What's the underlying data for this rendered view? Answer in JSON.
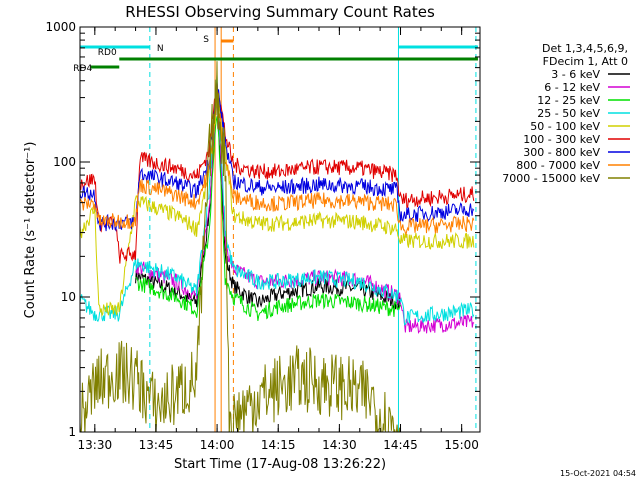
{
  "chart_data": {
    "type": "line",
    "title": "RHESSI Observing Summary Count Rates",
    "xlabel": "Start Time (17-Aug-08 13:26:22)",
    "ylabel": "Count Rate (s⁻¹ detector⁻¹)",
    "y_scale": "log",
    "ylim": [
      1,
      1000
    ],
    "xlim": [
      "13:26:22",
      "15:04:30"
    ],
    "x_ticks": [
      "13:30",
      "13:45",
      "14:00",
      "14:15",
      "14:30",
      "14:45",
      "15:00"
    ],
    "y_ticks": [
      "1",
      "10",
      "100",
      "1000"
    ],
    "grid": false,
    "legend_placement": "top-right",
    "legend_header": [
      "Det 1,3,4,5,6,9,",
      "FDecim 1, Att 0"
    ],
    "series": [
      {
        "name": "3 - 6 keV",
        "color": "#000000",
        "points": [
          [
            "13:40",
            14.5
          ],
          [
            "13:50",
            11
          ],
          [
            "13:55",
            9
          ],
          [
            "13:58",
            40
          ],
          [
            "14:00",
            330
          ],
          [
            "14:02",
            20
          ],
          [
            "14:04",
            12
          ],
          [
            "14:10",
            9
          ],
          [
            "14:15",
            10.5
          ],
          [
            "14:25",
            12
          ],
          [
            "14:35",
            11.5
          ],
          [
            "14:45",
            9
          ]
        ]
      },
      {
        "name": "6 - 12 keV",
        "color": "#d400d4",
        "points": [
          [
            "13:40",
            17
          ],
          [
            "13:50",
            13
          ],
          [
            "13:55",
            10
          ],
          [
            "13:58",
            45
          ],
          [
            "14:00",
            350
          ],
          [
            "14:02",
            25
          ],
          [
            "14:04",
            16
          ],
          [
            "14:10",
            13
          ],
          [
            "14:15",
            13
          ],
          [
            "14:25",
            14
          ],
          [
            "14:35",
            13.5
          ],
          [
            "14:45",
            10
          ],
          [
            "14:46",
            6
          ],
          [
            "15:03",
            6.5
          ]
        ]
      },
      {
        "name": "12 - 25 keV",
        "color": "#00e000",
        "points": [
          [
            "13:40",
            13
          ],
          [
            "13:50",
            10
          ],
          [
            "13:55",
            8
          ],
          [
            "13:58",
            30
          ],
          [
            "14:00",
            250
          ],
          [
            "14:02",
            14
          ],
          [
            "14:04",
            10
          ],
          [
            "14:10",
            7.5
          ],
          [
            "14:15",
            8.5
          ],
          [
            "14:25",
            9.5
          ],
          [
            "14:35",
            9
          ],
          [
            "14:45",
            8
          ]
        ]
      },
      {
        "name": "25 - 50 keV",
        "color": "#00e0e0",
        "points": [
          [
            "13:26:22",
            9.5
          ],
          [
            "13:30",
            7.5
          ],
          [
            "13:36",
            7.5
          ],
          [
            "13:40",
            18
          ],
          [
            "13:50",
            14
          ],
          [
            "13:55",
            11
          ],
          [
            "13:58",
            60
          ],
          [
            "14:00",
            420
          ],
          [
            "14:02",
            30
          ],
          [
            "14:04",
            16
          ],
          [
            "14:10",
            13
          ],
          [
            "14:15",
            13
          ],
          [
            "14:25",
            14
          ],
          [
            "14:35",
            13
          ],
          [
            "14:45",
            10
          ],
          [
            "14:46",
            7
          ],
          [
            "15:03",
            8
          ]
        ]
      },
      {
        "name": "50 - 100 keV",
        "color": "#d0d000",
        "points": [
          [
            "13:26:22",
            30
          ],
          [
            "13:30",
            45
          ],
          [
            "13:31",
            8
          ],
          [
            "13:36",
            8
          ],
          [
            "13:40",
            52
          ],
          [
            "13:50",
            40
          ],
          [
            "13:55",
            32
          ],
          [
            "13:58",
            80
          ],
          [
            "14:00",
            290
          ],
          [
            "14:02",
            120
          ],
          [
            "14:04",
            40
          ],
          [
            "14:10",
            35
          ],
          [
            "14:15",
            35
          ],
          [
            "14:25",
            37
          ],
          [
            "14:35",
            36
          ],
          [
            "14:44",
            32
          ],
          [
            "14:45",
            26
          ],
          [
            "15:03",
            26
          ]
        ]
      },
      {
        "name": "100 - 300 keV",
        "color": "#e00000",
        "points": [
          [
            "13:26:22",
            70
          ],
          [
            "13:30",
            75
          ],
          [
            "13:31",
            35
          ],
          [
            "13:35",
            35
          ],
          [
            "13:36",
            20
          ],
          [
            "13:40",
            21
          ],
          [
            "13:41",
            105
          ],
          [
            "13:50",
            90
          ],
          [
            "13:55",
            78
          ],
          [
            "13:58",
            120
          ],
          [
            "14:00",
            400
          ],
          [
            "14:02",
            160
          ],
          [
            "14:04",
            95
          ],
          [
            "14:10",
            85
          ],
          [
            "14:15",
            85
          ],
          [
            "14:25",
            92
          ],
          [
            "14:35",
            90
          ],
          [
            "14:44",
            80
          ],
          [
            "14:45",
            52
          ],
          [
            "15:03",
            58
          ]
        ]
      },
      {
        "name": "300 - 800 keV",
        "color": "#0000e0",
        "points": [
          [
            "13:26:22",
            60
          ],
          [
            "13:30",
            58
          ],
          [
            "13:31",
            35
          ],
          [
            "13:40",
            36
          ],
          [
            "13:41",
            82
          ],
          [
            "13:50",
            70
          ],
          [
            "13:55",
            60
          ],
          [
            "13:58",
            100
          ],
          [
            "14:00",
            380
          ],
          [
            "14:02",
            140
          ],
          [
            "14:04",
            72
          ],
          [
            "14:10",
            65
          ],
          [
            "14:15",
            64
          ],
          [
            "14:25",
            68
          ],
          [
            "14:35",
            66
          ],
          [
            "14:44",
            62
          ],
          [
            "14:45",
            40
          ],
          [
            "15:03",
            45
          ]
        ]
      },
      {
        "name": "800 - 7000 keV",
        "color": "#ff8000",
        "points": [
          [
            "13:26:22",
            48
          ],
          [
            "13:30",
            50
          ],
          [
            "13:31",
            36
          ],
          [
            "13:40",
            37
          ],
          [
            "13:41",
            68
          ],
          [
            "13:50",
            57
          ],
          [
            "13:55",
            50
          ],
          [
            "13:58",
            85
          ],
          [
            "14:00",
            300
          ],
          [
            "14:02",
            110
          ],
          [
            "14:04",
            55
          ],
          [
            "14:10",
            50
          ],
          [
            "14:15",
            49
          ],
          [
            "14:25",
            52
          ],
          [
            "14:35",
            51
          ],
          [
            "14:44",
            48
          ],
          [
            "14:45",
            33
          ],
          [
            "15:03",
            35
          ]
        ]
      },
      {
        "name": "7000 - 15000 keV",
        "color": "#808000",
        "points": [
          [
            "13:26:22",
            1.2
          ],
          [
            "13:30",
            2.2
          ],
          [
            "13:35",
            2.8
          ],
          [
            "13:40",
            2.5
          ],
          [
            "13:45",
            1.5
          ],
          [
            "13:55",
            2.5
          ],
          [
            "13:58",
            100
          ],
          [
            "14:00",
            330
          ],
          [
            "14:02",
            100
          ],
          [
            "14:03",
            1.2
          ],
          [
            "14:10",
            1.8
          ],
          [
            "14:20",
            2.5
          ],
          [
            "14:30",
            2.2
          ],
          [
            "14:38",
            1.8
          ],
          [
            "14:40",
            1.3
          ],
          [
            "14:45",
            1.1
          ]
        ]
      }
    ],
    "annotations": {
      "flags": [
        {
          "label": "N",
          "color": "#00e0e0",
          "segments": [
            [
              "13:26:22",
              "13:43:30"
            ],
            [
              "14:44:30",
              "15:04:00"
            ]
          ]
        },
        {
          "label": "RD0",
          "color": "#008000",
          "segments": [
            [
              "13:36:00",
              "15:04:00"
            ]
          ]
        },
        {
          "label": "RD4",
          "color": "#008000",
          "segments": [
            [
              "13:29:00",
              "13:36:00"
            ]
          ]
        },
        {
          "label": "S",
          "color": "#ff8000",
          "segments": [
            [
              "14:01:00",
              "14:04:00"
            ]
          ]
        }
      ],
      "vertical_lines": [
        {
          "time": "13:43:30",
          "color": "#00e0e0",
          "style": "dashed"
        },
        {
          "time": "14:44:30",
          "color": "#00e0e0",
          "style": "solid"
        },
        {
          "time": "15:03:30",
          "color": "#00e0e0",
          "style": "dashed"
        },
        {
          "time": "13:59:30",
          "color": "#ff8000",
          "style": "solid"
        },
        {
          "time": "14:01:00",
          "color": "#ff8000",
          "style": "solid"
        },
        {
          "time": "14:04:00",
          "color": "#ff8000",
          "style": "dashed"
        }
      ]
    },
    "footer_date": "15-Oct-2021 04:54"
  }
}
